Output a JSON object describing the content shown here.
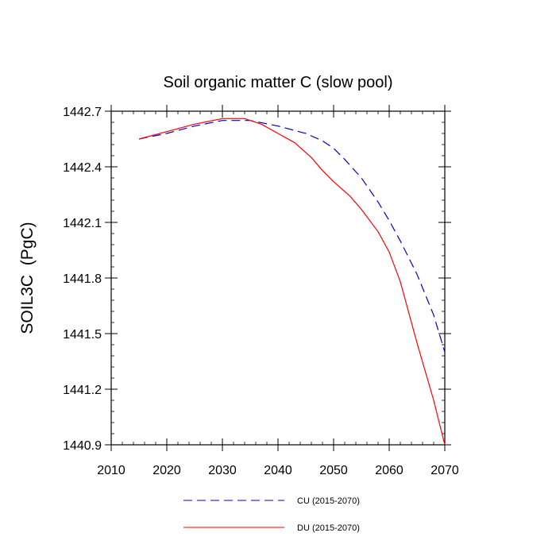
{
  "chart_data": {
    "type": "line",
    "title": "Soil organic matter C (slow pool)",
    "xlabel": "",
    "ylabel": "SOIL3C  (PgC)",
    "xlim": [
      2010,
      2070
    ],
    "ylim": [
      1440.9,
      1442.7
    ],
    "xticks": [
      2010,
      2020,
      2030,
      2040,
      2050,
      2060,
      2070
    ],
    "yticks": [
      1440.9,
      1441.2,
      1441.5,
      1441.8,
      1442.1,
      1442.4,
      1442.7
    ],
    "xtick_labels": [
      "2010",
      "2020",
      "2030",
      "2040",
      "2050",
      "2060",
      "2070"
    ],
    "ytick_labels": [
      "1440.9",
      "1441.2",
      "1441.5",
      "1441.8",
      "1442.1",
      "1442.4",
      "1442.7"
    ],
    "grid": false,
    "legend_position": "bottom",
    "series": [
      {
        "name": "CU (2015-2070)",
        "color": "#0000cc",
        "dash": "dashed",
        "x": [
          2015,
          2020,
          2025,
          2030,
          2035,
          2040,
          2045,
          2048,
          2050,
          2052,
          2055,
          2058,
          2060,
          2062,
          2065,
          2068,
          2070
        ],
        "y": [
          1442.55,
          1442.58,
          1442.62,
          1442.65,
          1442.65,
          1442.62,
          1442.58,
          1442.54,
          1442.5,
          1442.44,
          1442.34,
          1442.21,
          1442.11,
          1442.0,
          1441.82,
          1441.6,
          1441.4
        ]
      },
      {
        "name": "DU (2015-2070)",
        "color": "#ff0000",
        "dash": "solid",
        "x": [
          2015,
          2020,
          2025,
          2030,
          2034,
          2037,
          2040,
          2043,
          2046,
          2048,
          2050,
          2053,
          2055,
          2058,
          2060,
          2062,
          2065,
          2068,
          2070
        ],
        "y": [
          1442.55,
          1442.59,
          1442.63,
          1442.66,
          1442.66,
          1442.63,
          1442.58,
          1442.53,
          1442.45,
          1442.38,
          1442.32,
          1442.24,
          1442.17,
          1442.05,
          1441.94,
          1441.78,
          1441.45,
          1441.14,
          1440.9
        ]
      }
    ]
  }
}
